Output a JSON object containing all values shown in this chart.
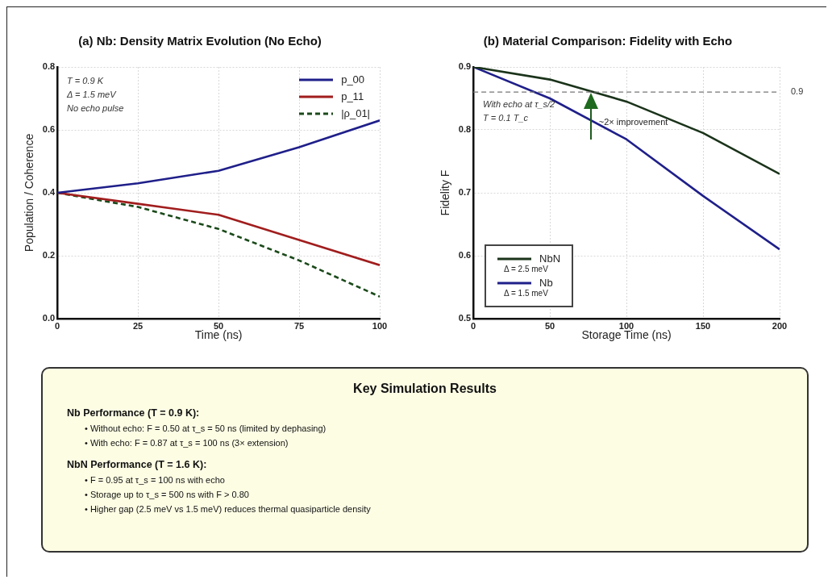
{
  "chart_data": [
    {
      "type": "line",
      "title": "(a) Nb: Density Matrix Evolution (No Echo)",
      "xlabel": "Time (ns)",
      "ylabel": "Population / Coherence",
      "xlim": [
        0,
        100
      ],
      "xticks": [
        0,
        25,
        50,
        75,
        100
      ],
      "ylim": [
        0,
        0.8
      ],
      "yticks": [
        {
          "value": 0,
          "label": "0.0"
        },
        0.2,
        0.4,
        0.6,
        0.8
      ],
      "grid": true,
      "legend": "top right",
      "marker": "none",
      "annotations": [
        "T = 0.9 K",
        "Δ = 1.5 meV",
        "No echo pulse"
      ],
      "series": [
        {
          "name": "p_00",
          "color": "#1f1f8a",
          "x": [
            0,
            25,
            50,
            75,
            100
          ],
          "values": [
            0.4,
            0.43,
            0.47,
            0.545,
            0.63
          ]
        },
        {
          "name": "p_11",
          "color": "#a11d1d",
          "x": [
            0,
            25,
            50,
            75,
            100
          ],
          "values": [
            0.4,
            0.365,
            0.33,
            0.25,
            0.17
          ]
        },
        {
          "name": "|ρ_01|",
          "color": "#1b4a1b",
          "line_style": "dashed",
          "x": [
            0,
            25,
            50,
            75,
            100
          ],
          "values": [
            0.4,
            0.355,
            0.285,
            0.185,
            0.07
          ]
        }
      ]
    },
    {
      "type": "line",
      "title": "(b) Material Comparison: Fidelity with Echo",
      "xlabel": "Storage Time (ns)",
      "ylabel": "Fidelity F",
      "xlim": [
        0,
        200
      ],
      "xticks": [
        0,
        50,
        100,
        150,
        200
      ],
      "ylim": [
        0.5,
        0.9
      ],
      "yticks": [
        0.5,
        0.6,
        0.7,
        0.8,
        0.9
      ],
      "grid": true,
      "legend": "bottom left",
      "marker": "none",
      "ref_lines": [
        {
          "axis": "y",
          "value": 0.86,
          "label": "0.9",
          "color": "#777777",
          "line_style": "dashed"
        }
      ],
      "annotations": [
        "With echo at τ_s/2",
        "T = 0.1 T_c",
        {
          "text": "~2× improvement",
          "x": 83,
          "y": 0.81
        },
        "Δ = 2.5 meV",
        "Δ = 1.5 meV"
      ],
      "series": [
        {
          "name": "NbN",
          "color": "#1a331a",
          "x": [
            0,
            50,
            100,
            150,
            200
          ],
          "values": [
            0.9,
            0.88,
            0.845,
            0.795,
            0.73
          ]
        },
        {
          "name": "Nb",
          "color": "#1f1f8a",
          "x": [
            0,
            50,
            100,
            150,
            200
          ],
          "values": [
            0.9,
            0.85,
            0.785,
            0.695,
            0.61
          ]
        }
      ]
    },
    {
      "type": "other",
      "title": "Key Simulation Results",
      "annotations": [
        "Nb Performance (T = 0.9 K):",
        "• Without echo: F = 0.50 at τ_s = 50 ns (limited by dephasing)",
        "• With echo: F = 0.87 at τ_s = 100 ns (3× extension)",
        "NbN Performance (T = 1.6 K):",
        "• F = 0.95 at τ_s = 100 ns with echo",
        "• Storage up to τ_s = 500 ns with F > 0.80",
        "• Higher gap (2.5 meV vs 1.5 meV) reduces thermal quasiparticle density"
      ]
    }
  ]
}
